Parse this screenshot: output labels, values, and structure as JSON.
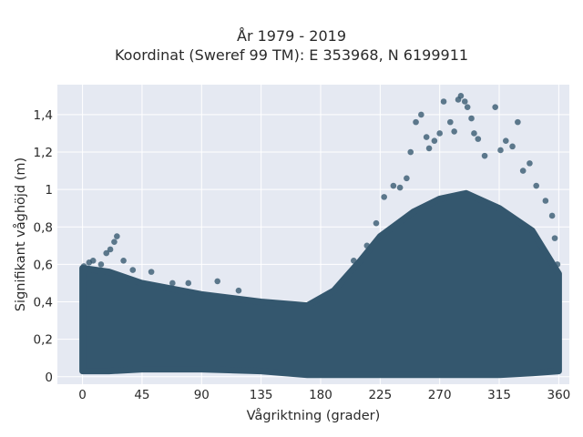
{
  "chart_data": {
    "type": "scatter",
    "title": "År 1979 - 2019",
    "subtitle": "Koordinat (Sweref 99 TM): E 353968, N 6199911",
    "xlabel": "Vågriktning (grader)",
    "ylabel": "Signifikant våghöjd (m)",
    "xlim": [
      -19,
      368
    ],
    "ylim": [
      -0.04,
      1.56
    ],
    "xticks": [
      0,
      45,
      90,
      135,
      180,
      225,
      270,
      315,
      360
    ],
    "xtick_labels": [
      "0",
      "45",
      "90",
      "135",
      "180",
      "225",
      "270",
      "315",
      "360"
    ],
    "yticks": [
      0,
      0.2,
      0.4,
      0.6,
      0.8,
      1.0,
      1.2,
      1.4
    ],
    "ytick_labels": [
      "0",
      "0,2",
      "0,4",
      "0,6",
      "0,8",
      "1",
      "1,2",
      "1,4"
    ],
    "grid": true,
    "colors": {
      "marker": "#34576e",
      "plot_bg": "#e5e9f2",
      "grid": "#ffffff"
    },
    "band": {
      "x": [
        0,
        20,
        45,
        90,
        135,
        170,
        190,
        210,
        225,
        250,
        270,
        290,
        315,
        340,
        360
      ],
      "y_min": [
        0.03,
        0.03,
        0.04,
        0.04,
        0.03,
        0.01,
        0.01,
        0.01,
        0.01,
        0.01,
        0.01,
        0.01,
        0.01,
        0.02,
        0.03
      ],
      "y_max": [
        0.58,
        0.56,
        0.5,
        0.44,
        0.4,
        0.38,
        0.46,
        0.62,
        0.75,
        0.88,
        0.95,
        0.98,
        0.9,
        0.78,
        0.55
      ]
    },
    "outliers": [
      {
        "x": 1,
        "y": 0.59
      },
      {
        "x": 5,
        "y": 0.61
      },
      {
        "x": 8,
        "y": 0.62
      },
      {
        "x": 14,
        "y": 0.6
      },
      {
        "x": 18,
        "y": 0.66
      },
      {
        "x": 21,
        "y": 0.68
      },
      {
        "x": 24,
        "y": 0.72
      },
      {
        "x": 26,
        "y": 0.75
      },
      {
        "x": 31,
        "y": 0.62
      },
      {
        "x": 38,
        "y": 0.57
      },
      {
        "x": 52,
        "y": 0.56
      },
      {
        "x": 68,
        "y": 0.5
      },
      {
        "x": 80,
        "y": 0.5
      },
      {
        "x": 102,
        "y": 0.51
      },
      {
        "x": 118,
        "y": 0.46
      },
      {
        "x": 205,
        "y": 0.62
      },
      {
        "x": 215,
        "y": 0.7
      },
      {
        "x": 222,
        "y": 0.82
      },
      {
        "x": 228,
        "y": 0.96
      },
      {
        "x": 235,
        "y": 1.02
      },
      {
        "x": 240,
        "y": 1.01
      },
      {
        "x": 245,
        "y": 1.06
      },
      {
        "x": 248,
        "y": 1.2
      },
      {
        "x": 252,
        "y": 1.36
      },
      {
        "x": 256,
        "y": 1.4
      },
      {
        "x": 260,
        "y": 1.28
      },
      {
        "x": 262,
        "y": 1.22
      },
      {
        "x": 266,
        "y": 1.26
      },
      {
        "x": 270,
        "y": 1.3
      },
      {
        "x": 273,
        "y": 1.47
      },
      {
        "x": 278,
        "y": 1.36
      },
      {
        "x": 281,
        "y": 1.31
      },
      {
        "x": 284,
        "y": 1.48
      },
      {
        "x": 286,
        "y": 1.5
      },
      {
        "x": 289,
        "y": 1.47
      },
      {
        "x": 291,
        "y": 1.44
      },
      {
        "x": 294,
        "y": 1.38
      },
      {
        "x": 296,
        "y": 1.3
      },
      {
        "x": 299,
        "y": 1.27
      },
      {
        "x": 304,
        "y": 1.18
      },
      {
        "x": 312,
        "y": 1.44
      },
      {
        "x": 316,
        "y": 1.21
      },
      {
        "x": 320,
        "y": 1.26
      },
      {
        "x": 325,
        "y": 1.23
      },
      {
        "x": 329,
        "y": 1.36
      },
      {
        "x": 333,
        "y": 1.1
      },
      {
        "x": 338,
        "y": 1.14
      },
      {
        "x": 343,
        "y": 1.02
      },
      {
        "x": 350,
        "y": 0.94
      },
      {
        "x": 355,
        "y": 0.86
      },
      {
        "x": 357,
        "y": 0.74
      },
      {
        "x": 359,
        "y": 0.6
      }
    ]
  }
}
